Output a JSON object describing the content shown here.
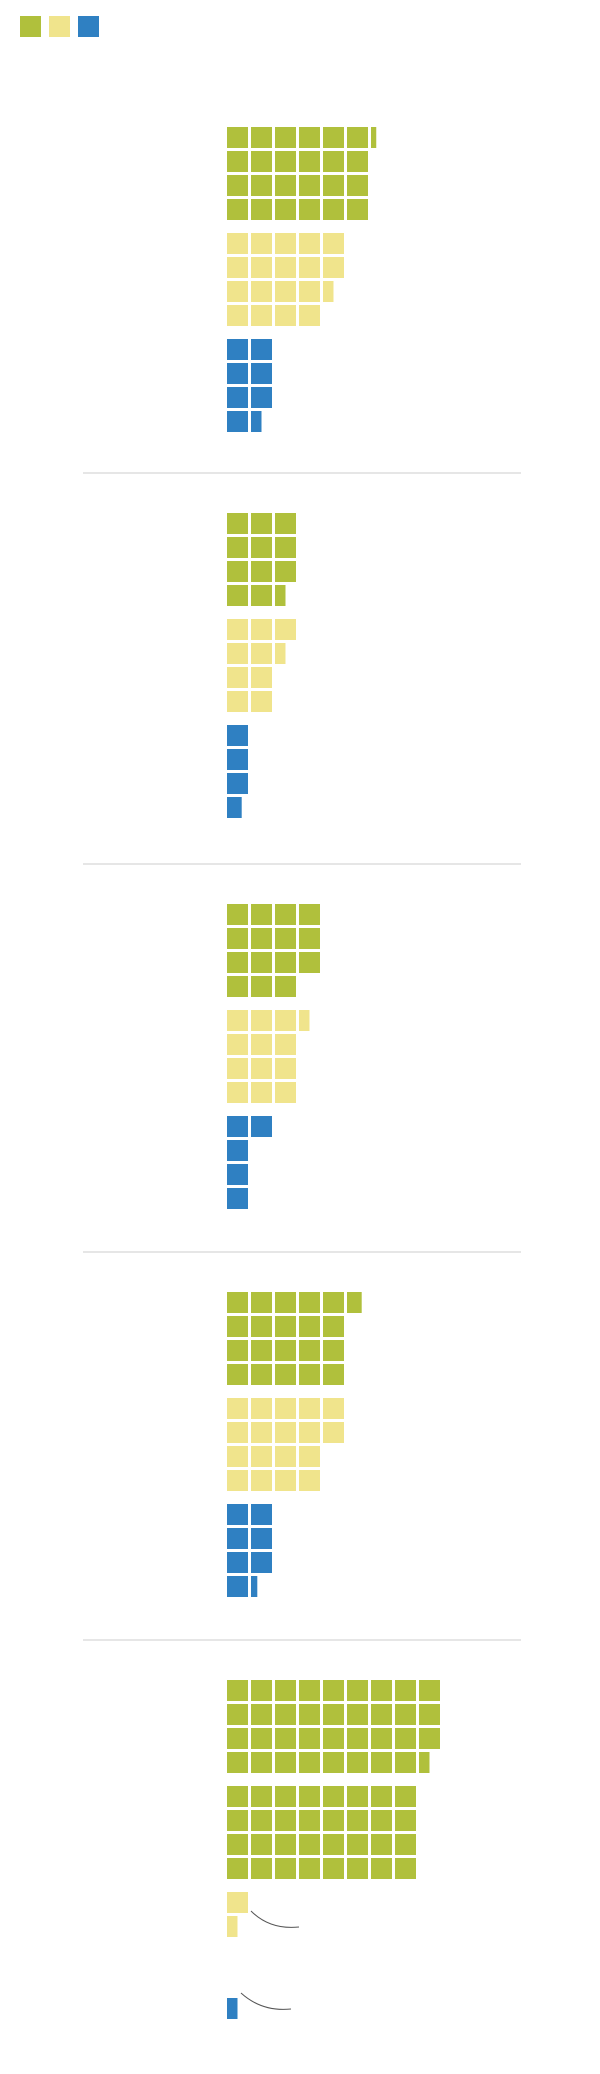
{
  "chart_data": {
    "type": "waffle",
    "legend": [
      "#b0c03c",
      "#f0e48c",
      "#2f80c2"
    ],
    "series": [
      {
        "color": "#b0c03c",
        "values": [
          24.25,
          11.5,
          15,
          20.7,
          35.5
        ]
      },
      {
        "color": "#b0c03c",
        "values": [
          null,
          null,
          null,
          null,
          32
        ]
      },
      {
        "color": "#f0e48c",
        "values": [
          18.5,
          9.5,
          12.5,
          18,
          1.5
        ]
      },
      {
        "color": "#2f80c2",
        "values": [
          7.5,
          3.7,
          5,
          7.3,
          0.5
        ]
      }
    ]
  }
}
